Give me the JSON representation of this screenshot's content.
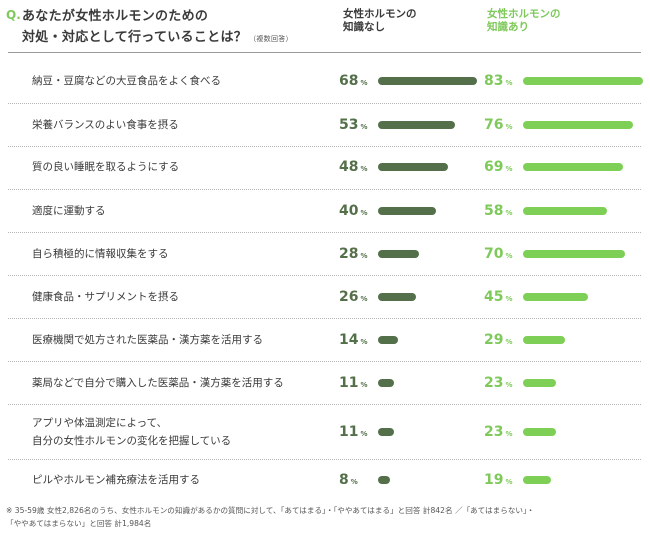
{
  "header": {
    "q_mark": "Q.",
    "title_line1": "あなたが女性ホルモンのための",
    "title_line2": "対処・対応として行っていることは？",
    "title_note": "（複数回答）",
    "col_without_line1": "女性ホルモンの",
    "col_without_line2": "知識なし",
    "col_with_line1": "女性ホルモンの",
    "col_with_line2": "知識あり"
  },
  "chart_data": {
    "type": "bar",
    "orientation": "horizontal",
    "unit": "%",
    "categories": [
      [
        "納豆・豆腐などの大豆食品をよく食べる"
      ],
      [
        "栄養バランスのよい食事を摂る"
      ],
      [
        "質の良い睡眠を取るようにする"
      ],
      [
        "適度に運動する"
      ],
      [
        "自ら積極的に情報収集をする"
      ],
      [
        "健康食品・サプリメントを摂る"
      ],
      [
        "医療機関で処方された医薬品・漢方薬を活用する"
      ],
      [
        "薬局などで自分で購入した医薬品・漢方薬を活用する"
      ],
      [
        "アプリや体温測定によって、",
        "自分の女性ホルモンの変化を把握している"
      ],
      [
        "ピルやホルモン補充療法を活用する"
      ]
    ],
    "series": [
      {
        "name": "女性ホルモンの知識なし",
        "color": "#54704a",
        "values": [
          68,
          53,
          48,
          40,
          28,
          26,
          14,
          11,
          11,
          8
        ]
      },
      {
        "name": "女性ホルモンの知識あり",
        "color": "#7ecf55",
        "values": [
          83,
          76,
          69,
          58,
          70,
          45,
          29,
          23,
          23,
          19
        ]
      }
    ]
  },
  "footnote": {
    "line1": "※ 35-59歳 女性2,826名のうち、女性ホルモンの知識があるかの質問に対して、「あてはまる」・「ややあてはまる」と回答 計842名 ／「あてはまらない」・",
    "line2": "「ややあてはまらない」と回答 計1,984名"
  }
}
